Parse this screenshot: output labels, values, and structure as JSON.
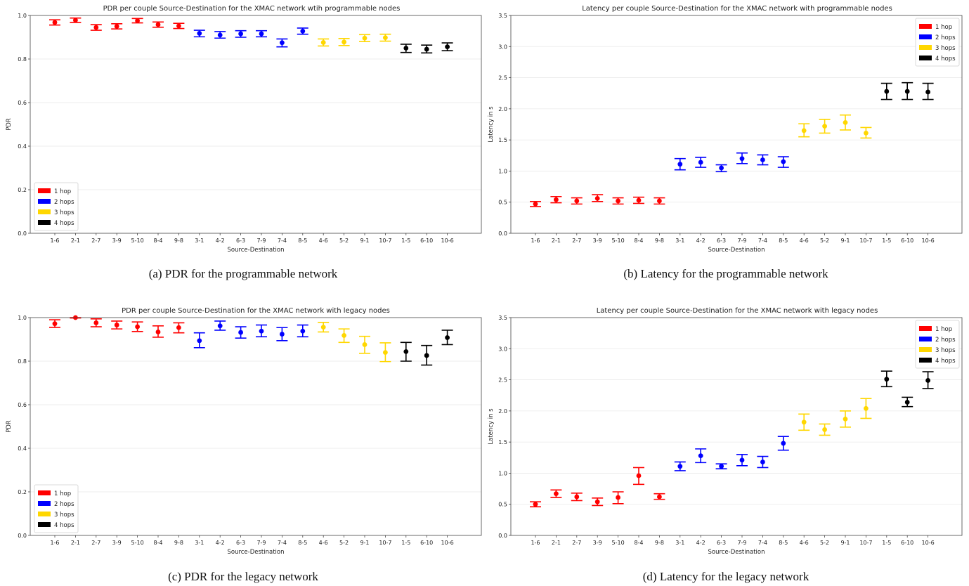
{
  "chart_data": [
    {
      "type": "scatter",
      "title": "PDR per couple Source-Destination for the XMAC network wtih programmable nodes",
      "xlabel": "Source-Destination",
      "ylabel": "PDR",
      "ylim": [
        0,
        1.0
      ],
      "yticks": [
        "0.0",
        "0.2",
        "0.4",
        "0.6",
        "0.8",
        "1.0"
      ],
      "grid": true,
      "legend_placement": "lower-left",
      "caption": "(a) PDR for the programmable network",
      "categories": [
        "1-6",
        "2-1",
        "2-7",
        "3-9",
        "5-10",
        "8-4",
        "9-8",
        "3-1",
        "4-2",
        "6-3",
        "7-9",
        "7-4",
        "8-5",
        "4-6",
        "5-2",
        "9-1",
        "10-7",
        "1-5",
        "6-10",
        "10-6"
      ],
      "series": [
        {
          "name": "1 hop",
          "color": "#ff0000",
          "x": [
            "1-6",
            "2-1",
            "2-7",
            "3-9",
            "5-10",
            "8-4",
            "9-8"
          ],
          "values": [
            0.968,
            0.978,
            0.945,
            0.95,
            0.976,
            0.958,
            0.952
          ],
          "lower": [
            0.956,
            0.968,
            0.932,
            0.938,
            0.966,
            0.946,
            0.94
          ],
          "upper": [
            0.98,
            0.988,
            0.958,
            0.962,
            0.986,
            0.97,
            0.964
          ]
        },
        {
          "name": "2 hops",
          "color": "#0000ff",
          "x": [
            "3-1",
            "4-2",
            "6-3",
            "7-9",
            "7-4",
            "8-5"
          ],
          "values": [
            0.918,
            0.91,
            0.916,
            0.916,
            0.875,
            0.928
          ],
          "lower": [
            0.902,
            0.896,
            0.9,
            0.902,
            0.856,
            0.914
          ],
          "upper": [
            0.932,
            0.926,
            0.93,
            0.93,
            0.892,
            0.942
          ]
        },
        {
          "name": "3 hops",
          "color": "#ffd700",
          "x": [
            "4-6",
            "5-2",
            "9-1",
            "10-7"
          ],
          "values": [
            0.876,
            0.878,
            0.896,
            0.898
          ],
          "lower": [
            0.86,
            0.862,
            0.88,
            0.882
          ],
          "upper": [
            0.892,
            0.894,
            0.912,
            0.914
          ]
        },
        {
          "name": "4 hops",
          "color": "#000000",
          "x": [
            "1-5",
            "6-10",
            "10-6"
          ],
          "values": [
            0.85,
            0.845,
            0.856
          ],
          "lower": [
            0.83,
            0.828,
            0.838
          ],
          "upper": [
            0.868,
            0.864,
            0.874
          ]
        }
      ]
    },
    {
      "type": "scatter",
      "title": "Latency per couple Source-Destination for the XMAC network with programmable nodes",
      "xlabel": "Source-Destination",
      "ylabel": "Latency in s",
      "ylim": [
        0,
        3.5
      ],
      "yticks": [
        "0.0",
        "0.5",
        "1.0",
        "1.5",
        "2.0",
        "2.5",
        "3.0",
        "3.5"
      ],
      "grid": true,
      "legend_placement": "top-right",
      "caption": "(b) Latency for the programmable network",
      "categories": [
        "1-6",
        "2-1",
        "2-7",
        "3-9",
        "5-10",
        "8-4",
        "9-8",
        "3-1",
        "4-2",
        "6-3",
        "7-9",
        "7-4",
        "8-5",
        "4-6",
        "5-2",
        "9-1",
        "10-7",
        "1-5",
        "6-10",
        "10-6"
      ],
      "series": [
        {
          "name": "1 hop",
          "color": "#ff0000",
          "x": [
            "1-6",
            "2-1",
            "2-7",
            "3-9",
            "5-10",
            "8-4",
            "9-8"
          ],
          "values": [
            0.47,
            0.54,
            0.52,
            0.56,
            0.52,
            0.53,
            0.52
          ],
          "lower": [
            0.43,
            0.49,
            0.47,
            0.51,
            0.47,
            0.48,
            0.47
          ],
          "upper": [
            0.51,
            0.59,
            0.57,
            0.62,
            0.57,
            0.58,
            0.57
          ]
        },
        {
          "name": "2 hops",
          "color": "#0000ff",
          "x": [
            "3-1",
            "4-2",
            "6-3",
            "7-9",
            "7-4",
            "8-5"
          ],
          "values": [
            1.11,
            1.14,
            1.05,
            1.2,
            1.18,
            1.15
          ],
          "lower": [
            1.02,
            1.06,
            0.99,
            1.12,
            1.1,
            1.06
          ],
          "upper": [
            1.2,
            1.22,
            1.1,
            1.29,
            1.26,
            1.23
          ]
        },
        {
          "name": "3 hops",
          "color": "#ffd700",
          "x": [
            "4-6",
            "5-2",
            "9-1",
            "10-7"
          ],
          "values": [
            1.65,
            1.72,
            1.78,
            1.61
          ],
          "lower": [
            1.55,
            1.61,
            1.66,
            1.53
          ],
          "upper": [
            1.76,
            1.83,
            1.9,
            1.7
          ]
        },
        {
          "name": "4 hops",
          "color": "#000000",
          "x": [
            "1-5",
            "6-10",
            "10-6"
          ],
          "values": [
            2.28,
            2.28,
            2.27
          ],
          "lower": [
            2.15,
            2.15,
            2.15
          ],
          "upper": [
            2.41,
            2.42,
            2.41
          ]
        }
      ]
    },
    {
      "type": "scatter",
      "title": "PDR per couple Source-Destination for the XMAC network with legacy nodes",
      "xlabel": "Source-Destination",
      "ylabel": "PDR",
      "ylim": [
        0,
        1.0
      ],
      "yticks": [
        "0.0",
        "0.2",
        "0.4",
        "0.6",
        "0.8",
        "1.0"
      ],
      "grid": true,
      "legend_placement": "lower-left",
      "caption": "(c) PDR for the legacy network",
      "categories": [
        "1-6",
        "2-1",
        "2-7",
        "3-9",
        "5-10",
        "8-4",
        "9-8",
        "3-1",
        "4-2",
        "6-3",
        "7-9",
        "7-4",
        "8-5",
        "4-6",
        "5-2",
        "9-1",
        "10-7",
        "1-5",
        "6-10",
        "10-6"
      ],
      "series": [
        {
          "name": "1 hop",
          "color": "#ff0000",
          "x": [
            "1-6",
            "2-1",
            "2-7",
            "3-9",
            "5-10",
            "8-4",
            "9-8"
          ],
          "values": [
            0.972,
            1.0,
            0.976,
            0.966,
            0.958,
            0.934,
            0.954
          ],
          "lower": [
            0.955,
            0.998,
            0.958,
            0.948,
            0.936,
            0.91,
            0.93
          ],
          "upper": [
            0.99,
            1.0,
            0.994,
            0.984,
            0.98,
            0.962,
            0.976
          ]
        },
        {
          "name": "2 hops",
          "color": "#0000ff",
          "x": [
            "3-1",
            "4-2",
            "6-3",
            "7-9",
            "7-4",
            "8-5"
          ],
          "values": [
            0.894,
            0.962,
            0.932,
            0.938,
            0.924,
            0.938
          ],
          "lower": [
            0.862,
            0.942,
            0.906,
            0.912,
            0.894,
            0.912
          ],
          "upper": [
            0.93,
            0.984,
            0.958,
            0.966,
            0.954,
            0.966
          ]
        },
        {
          "name": "3 hops",
          "color": "#ffd700",
          "x": [
            "4-6",
            "5-2",
            "9-1",
            "10-7"
          ],
          "values": [
            0.956,
            0.918,
            0.876,
            0.84
          ],
          "lower": [
            0.934,
            0.886,
            0.836,
            0.798
          ],
          "upper": [
            0.978,
            0.948,
            0.914,
            0.884
          ]
        },
        {
          "name": "4 hops",
          "color": "#000000",
          "x": [
            "1-5",
            "6-10",
            "10-6"
          ],
          "values": [
            0.844,
            0.826,
            0.908
          ],
          "lower": [
            0.8,
            0.782,
            0.876
          ],
          "upper": [
            0.886,
            0.872,
            0.942
          ]
        }
      ]
    },
    {
      "type": "scatter",
      "title": "Latency per couple Source-Destination for the XMAC network with legacy nodes",
      "xlabel": "Source-Destination",
      "ylabel": "Latency in s",
      "ylim": [
        0,
        3.5
      ],
      "yticks": [
        "0.0",
        "0.5",
        "1.0",
        "1.5",
        "2.0",
        "2.5",
        "3.0",
        "3.5"
      ],
      "grid": true,
      "legend_placement": "top-right",
      "caption": "(d) Latency for the legacy network",
      "categories": [
        "1-6",
        "2-1",
        "2-7",
        "3-9",
        "5-10",
        "8-4",
        "9-8",
        "3-1",
        "4-2",
        "6-3",
        "7-9",
        "7-4",
        "8-5",
        "4-6",
        "5-2",
        "9-1",
        "10-7",
        "1-5",
        "6-10",
        "10-6"
      ],
      "series": [
        {
          "name": "1 hop",
          "color": "#ff0000",
          "x": [
            "1-6",
            "2-1",
            "2-7",
            "3-9",
            "5-10",
            "8-4",
            "9-8"
          ],
          "values": [
            0.5,
            0.67,
            0.62,
            0.54,
            0.61,
            0.96,
            0.62
          ],
          "lower": [
            0.46,
            0.61,
            0.56,
            0.48,
            0.51,
            0.82,
            0.58
          ],
          "upper": [
            0.54,
            0.73,
            0.68,
            0.6,
            0.7,
            1.09,
            0.67
          ]
        },
        {
          "name": "2 hops",
          "color": "#0000ff",
          "x": [
            "3-1",
            "4-2",
            "6-3",
            "7-9",
            "7-4",
            "8-5"
          ],
          "values": [
            1.11,
            1.28,
            1.11,
            1.21,
            1.18,
            1.48
          ],
          "lower": [
            1.04,
            1.17,
            1.07,
            1.12,
            1.09,
            1.37
          ],
          "upper": [
            1.18,
            1.39,
            1.15,
            1.3,
            1.27,
            1.59
          ]
        },
        {
          "name": "3 hops",
          "color": "#ffd700",
          "x": [
            "4-6",
            "5-2",
            "9-1",
            "10-7"
          ],
          "values": [
            1.82,
            1.7,
            1.87,
            2.04
          ],
          "lower": [
            1.69,
            1.61,
            1.74,
            1.88
          ],
          "upper": [
            1.95,
            1.79,
            2.0,
            2.2
          ]
        },
        {
          "name": "4 hops",
          "color": "#000000",
          "x": [
            "1-5",
            "6-10",
            "10-6"
          ],
          "values": [
            2.51,
            2.14,
            2.49
          ],
          "lower": [
            2.39,
            2.07,
            2.36
          ],
          "upper": [
            2.64,
            2.22,
            2.63
          ]
        }
      ]
    }
  ]
}
